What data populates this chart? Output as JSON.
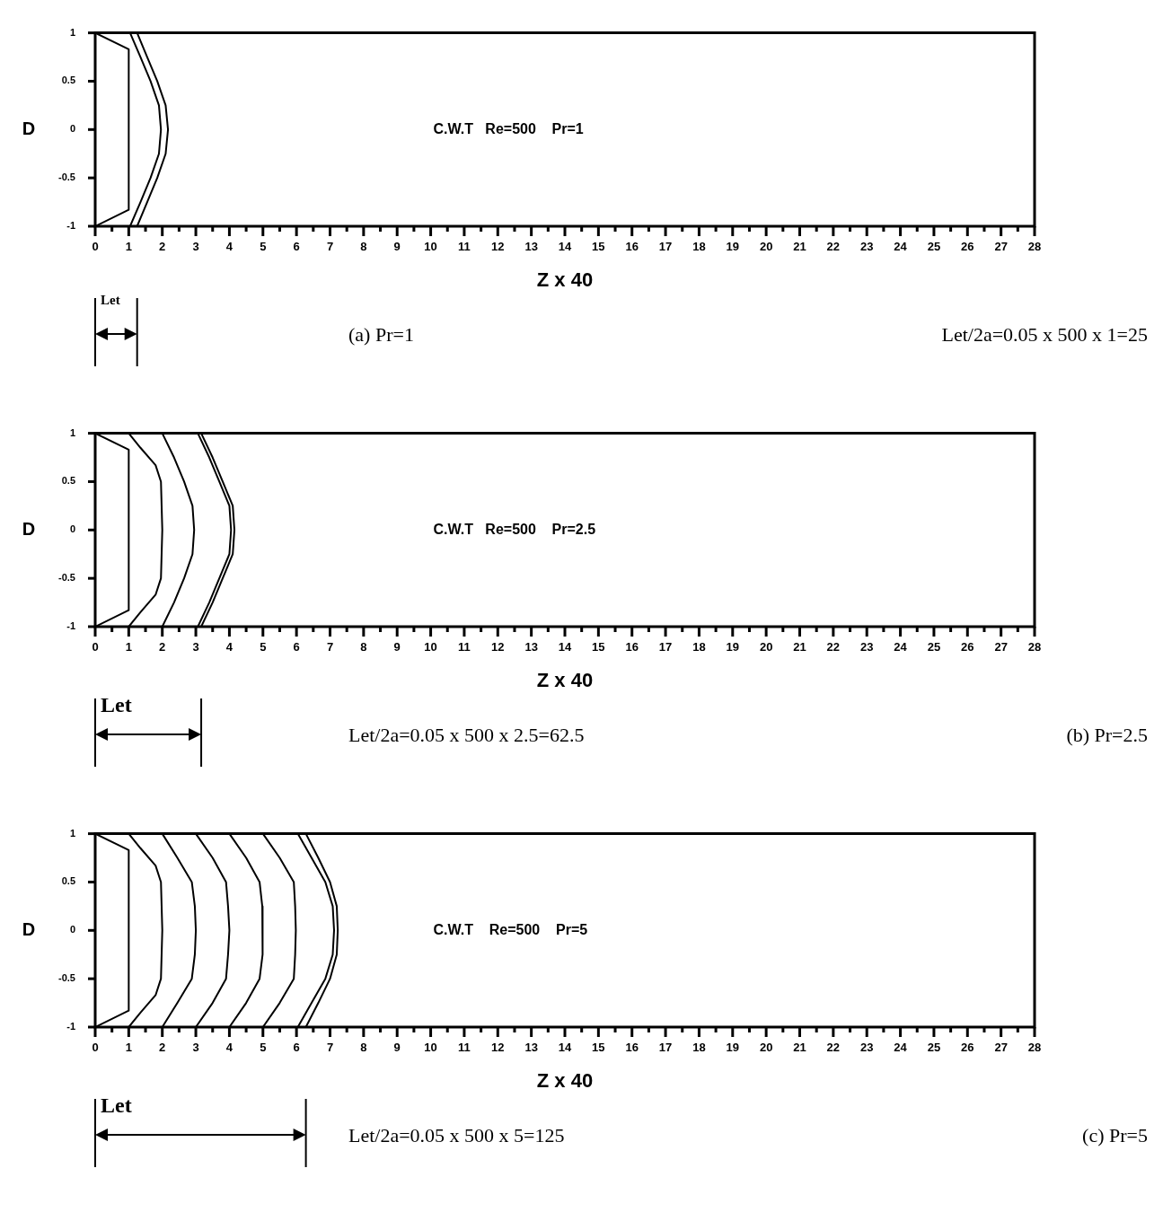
{
  "chart_data": [
    {
      "type": "line",
      "xlabel": "Z x 40",
      "ylabel": "D",
      "xlim": [
        0,
        28
      ],
      "ylim": [
        -1,
        1
      ],
      "xticks": [
        0,
        {
          "value": 0.5,
          "label": null
        },
        1,
        {
          "value": 1.5,
          "label": null
        },
        2,
        {
          "value": 2.5,
          "label": null
        },
        3,
        {
          "value": 3.5,
          "label": null
        },
        4,
        {
          "value": 4.5,
          "label": null
        },
        5,
        {
          "value": 5.5,
          "label": null
        },
        6,
        {
          "value": 6.5,
          "label": null
        },
        7,
        {
          "value": 7.5,
          "label": null
        },
        8,
        {
          "value": 8.5,
          "label": null
        },
        9,
        {
          "value": 9.5,
          "label": null
        },
        10,
        {
          "value": 10.5,
          "label": null
        },
        11,
        {
          "value": 11.5,
          "label": null
        },
        12,
        {
          "value": 12.5,
          "label": null
        },
        13,
        {
          "value": 13.5,
          "label": null
        },
        14,
        {
          "value": 14.5,
          "label": null
        },
        15,
        {
          "value": 15.5,
          "label": null
        },
        16,
        {
          "value": 16.5,
          "label": null
        },
        17,
        {
          "value": 17.5,
          "label": null
        },
        18,
        {
          "value": 18.5,
          "label": null
        },
        19,
        {
          "value": 19.5,
          "label": null
        },
        20,
        {
          "value": 20.5,
          "label": null
        },
        21,
        {
          "value": 21.5,
          "label": null
        },
        22,
        {
          "value": 22.5,
          "label": null
        },
        23,
        {
          "value": 23.5,
          "label": null
        },
        24,
        {
          "value": 24.5,
          "label": null
        },
        25,
        {
          "value": 25.5,
          "label": null
        },
        26,
        {
          "value": 26.5,
          "label": null
        },
        27,
        {
          "value": 27.5,
          "label": null
        },
        28
      ],
      "yticks": [
        -1,
        -0.5,
        0,
        0.5,
        1
      ],
      "grid": false,
      "legend": false,
      "marker": "none",
      "series": [
        {
          "color": "#000000",
          "x": [
            0,
            1,
            1,
            0
          ],
          "values": [
            1,
            0.83,
            -0.83,
            -1
          ]
        },
        {
          "color": "#000000",
          "x": [
            1.04,
            1.35,
            1.65,
            1.9,
            1.96,
            1.9,
            1.65,
            1.35,
            1.04
          ],
          "values": [
            1,
            0.75,
            0.5,
            0.25,
            0,
            -0.25,
            -0.5,
            -0.75,
            -1
          ]
        },
        {
          "color": "#000000",
          "x": [
            1.25,
            1.55,
            1.85,
            2.1,
            2.17,
            2.1,
            1.85,
            1.55,
            1.25
          ],
          "values": [
            1,
            0.75,
            0.5,
            0.25,
            0,
            -0.25,
            -0.5,
            -0.75,
            -1
          ]
        }
      ],
      "annotations": [
        "C.W.T   Re=500    Pr=1",
        "Let",
        "(a) Pr=1",
        "Let/2a=0.05 x 500 x 1=25"
      ]
    },
    {
      "type": "line",
      "xlabel": "Z x 40",
      "ylabel": "D",
      "xlim": [
        0,
        28
      ],
      "ylim": [
        -1,
        1
      ],
      "xticks": [
        0,
        {
          "value": 0.5,
          "label": null
        },
        1,
        {
          "value": 1.5,
          "label": null
        },
        2,
        {
          "value": 2.5,
          "label": null
        },
        3,
        {
          "value": 3.5,
          "label": null
        },
        4,
        {
          "value": 4.5,
          "label": null
        },
        5,
        {
          "value": 5.5,
          "label": null
        },
        6,
        {
          "value": 6.5,
          "label": null
        },
        7,
        {
          "value": 7.5,
          "label": null
        },
        8,
        {
          "value": 8.5,
          "label": null
        },
        9,
        {
          "value": 9.5,
          "label": null
        },
        10,
        {
          "value": 10.5,
          "label": null
        },
        11,
        {
          "value": 11.5,
          "label": null
        },
        12,
        {
          "value": 12.5,
          "label": null
        },
        13,
        {
          "value": 13.5,
          "label": null
        },
        14,
        {
          "value": 14.5,
          "label": null
        },
        15,
        {
          "value": 15.5,
          "label": null
        },
        16,
        {
          "value": 16.5,
          "label": null
        },
        17,
        {
          "value": 17.5,
          "label": null
        },
        18,
        {
          "value": 18.5,
          "label": null
        },
        19,
        {
          "value": 19.5,
          "label": null
        },
        20,
        {
          "value": 20.5,
          "label": null
        },
        21,
        {
          "value": 21.5,
          "label": null
        },
        22,
        {
          "value": 22.5,
          "label": null
        },
        23,
        {
          "value": 23.5,
          "label": null
        },
        24,
        {
          "value": 24.5,
          "label": null
        },
        25,
        {
          "value": 25.5,
          "label": null
        },
        26,
        {
          "value": 26.5,
          "label": null
        },
        27,
        {
          "value": 27.5,
          "label": null
        },
        28
      ],
      "yticks": [
        -1,
        -0.5,
        0,
        0.5,
        1
      ],
      "grid": false,
      "legend": false,
      "marker": "none",
      "series": [
        {
          "color": "#000000",
          "x": [
            0,
            1,
            1,
            0
          ],
          "values": [
            1,
            0.83,
            -0.83,
            -1
          ]
        },
        {
          "color": "#000000",
          "x": [
            1,
            1.35,
            1.8,
            1.96,
            2,
            1.96,
            1.8,
            1.35,
            1
          ],
          "values": [
            1,
            0.85,
            0.67,
            0.5,
            0,
            -0.5,
            -0.67,
            -0.85,
            -1
          ]
        },
        {
          "color": "#000000",
          "x": [
            2,
            2.35,
            2.65,
            2.9,
            2.95,
            2.9,
            2.65,
            2.35,
            2
          ],
          "values": [
            1,
            0.75,
            0.5,
            0.25,
            0,
            -0.25,
            -0.5,
            -0.75,
            -1
          ]
        },
        {
          "color": "#000000",
          "x": [
            3.06,
            3.4,
            3.7,
            4,
            4.05,
            4,
            3.7,
            3.4,
            3.06
          ],
          "values": [
            1,
            0.75,
            0.5,
            0.25,
            0,
            -0.25,
            -0.5,
            -0.75,
            -1
          ]
        },
        {
          "color": "#000000",
          "x": [
            3.16,
            3.5,
            3.8,
            4.1,
            4.15,
            4.1,
            3.8,
            3.5,
            3.16
          ],
          "values": [
            1,
            0.75,
            0.5,
            0.25,
            0,
            -0.25,
            -0.5,
            -0.75,
            -1
          ]
        }
      ],
      "annotations": [
        "C.W.T   Re=500    Pr=2.5",
        "Let",
        "Let/2a=0.05 x 500 x 2.5=62.5",
        "(b) Pr=2.5"
      ]
    },
    {
      "type": "line",
      "xlabel": "Z x 40",
      "ylabel": "D",
      "xlim": [
        0,
        28
      ],
      "ylim": [
        -1,
        1
      ],
      "xticks": [
        0,
        {
          "value": 0.5,
          "label": null
        },
        1,
        {
          "value": 1.5,
          "label": null
        },
        2,
        {
          "value": 2.5,
          "label": null
        },
        3,
        {
          "value": 3.5,
          "label": null
        },
        4,
        {
          "value": 4.5,
          "label": null
        },
        5,
        {
          "value": 5.5,
          "label": null
        },
        6,
        {
          "value": 6.5,
          "label": null
        },
        7,
        {
          "value": 7.5,
          "label": null
        },
        8,
        {
          "value": 8.5,
          "label": null
        },
        9,
        {
          "value": 9.5,
          "label": null
        },
        10,
        {
          "value": 10.5,
          "label": null
        },
        11,
        {
          "value": 11.5,
          "label": null
        },
        12,
        {
          "value": 12.5,
          "label": null
        },
        13,
        {
          "value": 13.5,
          "label": null
        },
        14,
        {
          "value": 14.5,
          "label": null
        },
        15,
        {
          "value": 15.5,
          "label": null
        },
        16,
        {
          "value": 16.5,
          "label": null
        },
        17,
        {
          "value": 17.5,
          "label": null
        },
        18,
        {
          "value": 18.5,
          "label": null
        },
        19,
        {
          "value": 19.5,
          "label": null
        },
        20,
        {
          "value": 20.5,
          "label": null
        },
        21,
        {
          "value": 21.5,
          "label": null
        },
        22,
        {
          "value": 22.5,
          "label": null
        },
        23,
        {
          "value": 23.5,
          "label": null
        },
        24,
        {
          "value": 24.5,
          "label": null
        },
        25,
        {
          "value": 25.5,
          "label": null
        },
        26,
        {
          "value": 26.5,
          "label": null
        },
        27,
        {
          "value": 27.5,
          "label": null
        },
        28
      ],
      "yticks": [
        -1,
        -0.5,
        0,
        0.5,
        1
      ],
      "grid": false,
      "legend": false,
      "marker": "none",
      "series": [
        {
          "color": "#000000",
          "x": [
            0,
            1,
            1,
            0
          ],
          "values": [
            1,
            0.83,
            -0.83,
            -1
          ]
        },
        {
          "color": "#000000",
          "x": [
            1,
            1.35,
            1.8,
            1.96,
            2,
            1.96,
            1.8,
            1.35,
            1
          ],
          "values": [
            1,
            0.85,
            0.67,
            0.5,
            0,
            -0.5,
            -0.67,
            -0.85,
            -1
          ]
        },
        {
          "color": "#000000",
          "x": [
            2,
            2.45,
            2.88,
            2.97,
            3,
            2.97,
            2.88,
            2.45,
            2
          ],
          "values": [
            1,
            0.75,
            0.5,
            0.25,
            0,
            -0.25,
            -0.5,
            -0.75,
            -1
          ]
        },
        {
          "color": "#000000",
          "x": [
            3,
            3.5,
            3.9,
            3.96,
            4,
            3.96,
            3.9,
            3.5,
            3
          ],
          "values": [
            1,
            0.75,
            0.5,
            0.25,
            0,
            -0.25,
            -0.5,
            -0.75,
            -1
          ]
        },
        {
          "color": "#000000",
          "x": [
            4,
            4.5,
            4.9,
            4.98,
            5,
            4.98,
            4.9,
            4.5,
            4
          ],
          "values": [
            1,
            0.75,
            0.5,
            0.25,
            0,
            -0.25,
            -0.5,
            -0.75,
            -1
          ]
        },
        {
          "color": "#000000",
          "x": [
            5,
            5.5,
            5.92,
            5.96,
            5.98,
            5.96,
            5.92,
            5.5,
            5
          ],
          "values": [
            1,
            0.75,
            0.5,
            0.25,
            0,
            -0.25,
            -0.5,
            -0.75,
            -1
          ]
        },
        {
          "color": "#000000",
          "x": [
            6.04,
            6.45,
            6.86,
            7.08,
            7.12,
            7.08,
            6.86,
            6.45,
            6.04
          ],
          "values": [
            1,
            0.75,
            0.5,
            0.25,
            0,
            -0.25,
            -0.5,
            -0.75,
            -1
          ]
        },
        {
          "color": "#000000",
          "x": [
            6.28,
            6.65,
            7,
            7.2,
            7.23,
            7.2,
            7,
            6.65,
            6.28
          ],
          "values": [
            1,
            0.75,
            0.5,
            0.25,
            0,
            -0.25,
            -0.5,
            -0.75,
            -1
          ]
        }
      ],
      "annotations": [
        "C.W.T    Re=500    Pr=5",
        "Let",
        "Let/2a=0.05 x 500 x 5=125",
        "(c) Pr=5"
      ]
    }
  ]
}
